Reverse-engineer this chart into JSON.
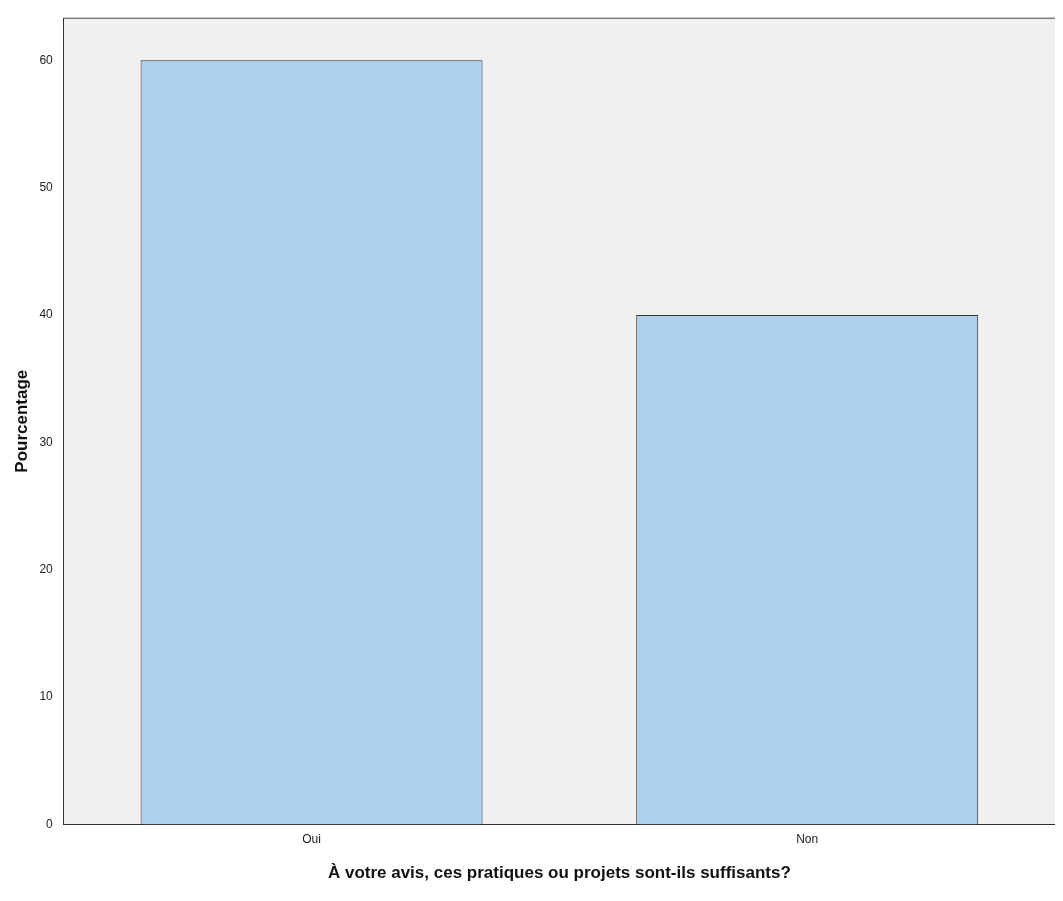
{
  "chart_data": {
    "type": "bar",
    "xlabel": "À votre avis, ces pratiques ou projets sont-ils suffisants?",
    "ylabel": "Pourcentage",
    "categories": [
      "Oui",
      "Non"
    ],
    "values": [
      60,
      40
    ],
    "color": "#aecfed",
    "ylim": [
      0,
      63.3
    ],
    "yticks": [
      0,
      10,
      20,
      30,
      40,
      50,
      60
    ],
    "grid": false,
    "legend": false
  }
}
